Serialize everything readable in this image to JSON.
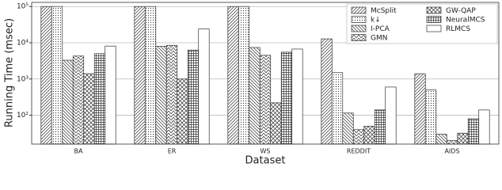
{
  "chart_data": {
    "type": "bar",
    "xlabel": "Dataset",
    "ylabel": "Running Time (msec)",
    "categories": [
      "BA",
      "ER",
      "WS",
      "REDDIT",
      "AIDS"
    ],
    "series": [
      {
        "name": "McSplit",
        "color": "#ffffff",
        "hatch": "////",
        "values": [
          100000,
          100000,
          100000,
          12800,
          1400
        ]
      },
      {
        "name": "k↓",
        "color": "#ffffff",
        "hatch": "..",
        "values": [
          100000,
          100000,
          100000,
          1500,
          500
        ]
      },
      {
        "name": "I-PCA",
        "color": "#ffffff",
        "hatch": "\\\\\\\\",
        "values": [
          3300,
          8000,
          7400,
          115,
          30
        ]
      },
      {
        "name": "GMN",
        "color": "#ffffff",
        "hatch": "//\\\\",
        "values": [
          4300,
          8500,
          4500,
          40,
          20
        ]
      },
      {
        "name": "GW-QAP",
        "color": "#ffffff",
        "hatch": "xx",
        "values": [
          1400,
          1000,
          220,
          50,
          32
        ]
      },
      {
        "name": "NeuralMCS",
        "color": "#ffffff",
        "hatch": "++",
        "values": [
          5000,
          6300,
          5500,
          140,
          80
        ]
      },
      {
        "name": "RLMCS",
        "color": "#ffffff",
        "hatch": "",
        "values": [
          8100,
          24000,
          6700,
          600,
          140
        ]
      }
    ],
    "log_scale": true,
    "grid": true,
    "legend": "upper right",
    "ylim": [
      16,
      130000
    ],
    "yticks": [
      {
        "value": 100,
        "label": "10²"
      },
      {
        "value": 1000,
        "label": "10³"
      },
      {
        "value": 10000,
        "label": "10⁴"
      },
      {
        "value": 100000,
        "label": "10⁵"
      }
    ]
  }
}
